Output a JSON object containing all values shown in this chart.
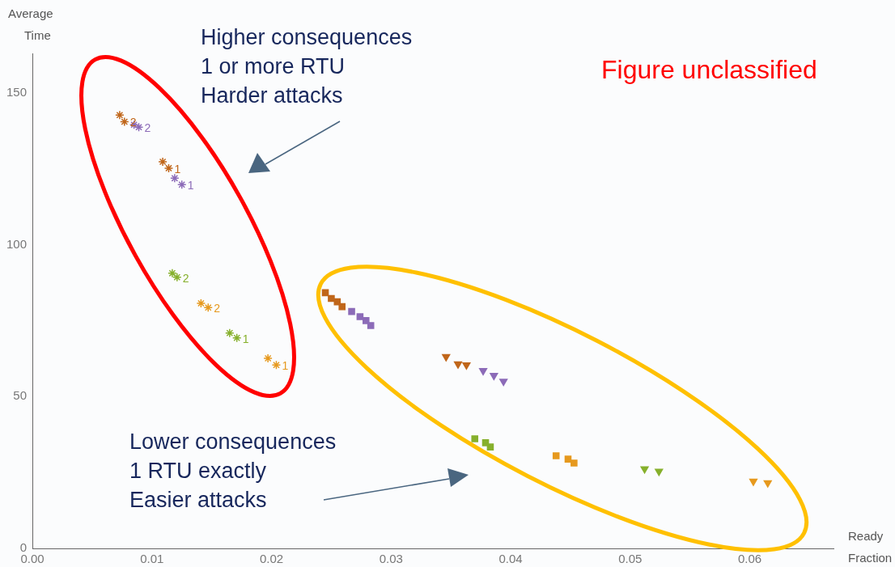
{
  "chart_data": {
    "type": "scatter",
    "xlabel": "Ready\nFraction",
    "ylabel": "Average\nTime",
    "xlim": [
      0,
      0.067
    ],
    "ylim": [
      0,
      163
    ],
    "xticks": [
      {
        "value": 0,
        "label": "0.00"
      },
      {
        "value": 0.01,
        "label": "0.01"
      },
      {
        "value": 0.02,
        "label": "0.02"
      },
      {
        "value": 0.03,
        "label": "0.03"
      },
      {
        "value": 0.04,
        "label": "0.04"
      },
      {
        "value": 0.05,
        "label": "0.05"
      },
      {
        "value": 0.06,
        "label": "0.06"
      }
    ],
    "yticks": [
      0,
      50,
      100,
      150
    ],
    "grid": false,
    "legend": false,
    "annotations": [
      "Higher consequences\n1 or more RTU\nHarder attacks",
      "Lower consequences\n1 RTU exactly\nEasier attacks",
      "Figure unclassified",
      {
        "text": "2",
        "x": 0.0077,
        "y": 140.5
      },
      {
        "text": "2",
        "x": 0.0089,
        "y": 138.7
      },
      {
        "text": "1",
        "x": 0.0114,
        "y": 125.2
      },
      {
        "text": "1",
        "x": 0.0125,
        "y": 119.8
      },
      {
        "text": "2",
        "x": 0.0121,
        "y": 89.3
      },
      {
        "text": "2",
        "x": 0.0147,
        "y": 79.3
      },
      {
        "text": "1",
        "x": 0.0171,
        "y": 69.3
      },
      {
        "text": "1",
        "x": 0.0204,
        "y": 60.4
      }
    ],
    "series": [
      {
        "color": "#c0661a",
        "marker": "cross",
        "x": [
          0.0073,
          0.0077,
          0.0109,
          0.0114
        ],
        "values": [
          142.7,
          140.5,
          127.3,
          125.2
        ]
      },
      {
        "color": "#8c6bb8",
        "marker": "cross",
        "x": [
          0.0085,
          0.0089,
          0.0119,
          0.0125
        ],
        "values": [
          139.5,
          138.7,
          121.9,
          119.8
        ]
      },
      {
        "color": "#86b02c",
        "marker": "cross",
        "x": [
          0.0117,
          0.0121,
          0.0165,
          0.0171
        ],
        "values": [
          90.6,
          89.3,
          70.9,
          69.3
        ]
      },
      {
        "color": "#e6991e",
        "marker": "cross",
        "x": [
          0.0141,
          0.0147,
          0.0197,
          0.0204
        ],
        "values": [
          80.7,
          79.3,
          62.6,
          60.4
        ]
      },
      {
        "color": "#c0661a",
        "marker": "square",
        "x": [
          0.0245,
          0.025,
          0.0255,
          0.0259
        ],
        "values": [
          84.2,
          82.3,
          81.2,
          79.6
        ]
      },
      {
        "color": "#8c6bb8",
        "marker": "square",
        "x": [
          0.0267,
          0.0274,
          0.0279,
          0.0283
        ],
        "values": [
          78.0,
          76.3,
          75.0,
          73.4
        ]
      },
      {
        "color": "#86b02c",
        "marker": "square",
        "x": [
          0.037,
          0.0379,
          0.0383
        ],
        "values": [
          36.1,
          34.8,
          33.4
        ]
      },
      {
        "color": "#e6991e",
        "marker": "square",
        "x": [
          0.0438,
          0.0448,
          0.0453
        ],
        "values": [
          30.5,
          29.4,
          28.1
        ]
      },
      {
        "color": "#c0661a",
        "marker": "triangle",
        "x": [
          0.0346,
          0.0356,
          0.0363
        ],
        "values": [
          63.1,
          60.7,
          60.4
        ]
      },
      {
        "color": "#8c6bb8",
        "marker": "triangle",
        "x": [
          0.0377,
          0.0386,
          0.0394
        ],
        "values": [
          58.5,
          56.9,
          55.0
        ]
      },
      {
        "color": "#86b02c",
        "marker": "triangle",
        "x": [
          0.0512,
          0.0524
        ],
        "values": [
          26.2,
          25.4
        ]
      },
      {
        "color": "#e6991e",
        "marker": "triangle",
        "x": [
          0.0603,
          0.0615
        ],
        "values": [
          22.1,
          21.6
        ]
      }
    ]
  }
}
